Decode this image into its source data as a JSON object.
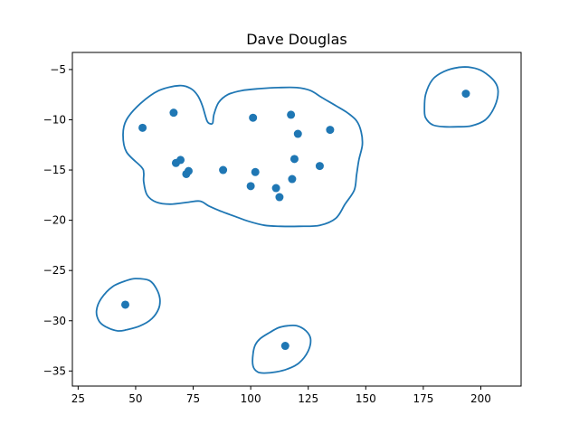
{
  "chart_data": {
    "type": "scatter",
    "title": "Dave Douglas",
    "xlabel": "",
    "ylabel": "",
    "xlim": [
      22.5,
      217.5
    ],
    "ylim": [
      -36.5,
      -3.3
    ],
    "xticks": [
      25,
      50,
      75,
      100,
      125,
      150,
      175,
      200
    ],
    "yticks": [
      -5,
      -10,
      -15,
      -20,
      -25,
      -30,
      -35
    ],
    "grid": false,
    "legend": "none",
    "color": "#1f77b4",
    "points": [
      {
        "x": 53.0,
        "y": -10.8
      },
      {
        "x": 66.5,
        "y": -9.3
      },
      {
        "x": 67.5,
        "y": -14.3
      },
      {
        "x": 69.5,
        "y": -14.0
      },
      {
        "x": 72.0,
        "y": -15.4
      },
      {
        "x": 73.0,
        "y": -15.1
      },
      {
        "x": 88.0,
        "y": -15.0
      },
      {
        "x": 100.0,
        "y": -16.6
      },
      {
        "x": 101.0,
        "y": -9.8
      },
      {
        "x": 102.0,
        "y": -15.2
      },
      {
        "x": 111.0,
        "y": -16.8
      },
      {
        "x": 112.5,
        "y": -17.7
      },
      {
        "x": 117.5,
        "y": -9.5
      },
      {
        "x": 118.0,
        "y": -15.9
      },
      {
        "x": 119.0,
        "y": -13.9
      },
      {
        "x": 120.5,
        "y": -11.4
      },
      {
        "x": 130.0,
        "y": -14.6
      },
      {
        "x": 134.5,
        "y": -11.0
      },
      {
        "x": 193.5,
        "y": -7.4
      },
      {
        "x": 45.5,
        "y": -28.4
      },
      {
        "x": 115.0,
        "y": -32.5
      }
    ],
    "contours": [
      [
        [
          83.5,
          -10.3
        ],
        [
          84,
          -9.5
        ],
        [
          86,
          -8.3
        ],
        [
          90,
          -7.5
        ],
        [
          96,
          -7.1
        ],
        [
          104,
          -6.9
        ],
        [
          112,
          -6.8
        ],
        [
          120,
          -6.8
        ],
        [
          126,
          -7.1
        ],
        [
          131,
          -7.8
        ],
        [
          137,
          -8.6
        ],
        [
          142,
          -9.3
        ],
        [
          146,
          -10.1
        ],
        [
          148,
          -11.2
        ],
        [
          148.5,
          -12.5
        ],
        [
          147,
          -14
        ],
        [
          146,
          -15.5
        ],
        [
          145,
          -17
        ],
        [
          141,
          -18.4
        ],
        [
          137,
          -19.8
        ],
        [
          130,
          -20.5
        ],
        [
          121,
          -20.6
        ],
        [
          113,
          -20.6
        ],
        [
          106,
          -20.5
        ],
        [
          99,
          -20.1
        ],
        [
          93,
          -19.6
        ],
        [
          87,
          -19.1
        ],
        [
          82,
          -18.6
        ],
        [
          78,
          -18.1
        ],
        [
          73,
          -18.2
        ],
        [
          65,
          -18.4
        ],
        [
          59,
          -18.2
        ],
        [
          55,
          -17.5
        ],
        [
          53.5,
          -16.2
        ],
        [
          53.5,
          -15.3
        ],
        [
          52.5,
          -14.7
        ],
        [
          46,
          -13.2
        ],
        [
          44.5,
          -11.5
        ],
        [
          46,
          -10
        ],
        [
          52,
          -8.4
        ],
        [
          60,
          -7.1
        ],
        [
          69,
          -6.6
        ],
        [
          74,
          -6.9
        ],
        [
          77,
          -7.6
        ],
        [
          79,
          -8.6
        ],
        [
          81,
          -10.1
        ],
        [
          82.5,
          -10.4
        ],
        [
          83.5,
          -10.3
        ]
      ],
      [
        [
          175.5,
          -9.0
        ],
        [
          176,
          -7.5
        ],
        [
          179,
          -6.0
        ],
        [
          184,
          -5.2
        ],
        [
          190,
          -4.8
        ],
        [
          196,
          -4.8
        ],
        [
          201,
          -5.2
        ],
        [
          206,
          -6.2
        ],
        [
          207.5,
          -7.2
        ],
        [
          206,
          -8.7
        ],
        [
          202,
          -10.0
        ],
        [
          196,
          -10.6
        ],
        [
          190,
          -10.7
        ],
        [
          184,
          -10.7
        ],
        [
          179,
          -10.5
        ],
        [
          176,
          -9.8
        ],
        [
          175.5,
          -9.0
        ]
      ],
      [
        [
          33,
          -29.0
        ],
        [
          35,
          -27.8
        ],
        [
          40,
          -26.6
        ],
        [
          46,
          -26.0
        ],
        [
          50,
          -25.8
        ],
        [
          56,
          -26.0
        ],
        [
          59,
          -26.8
        ],
        [
          60.5,
          -27.8
        ],
        [
          60,
          -28.8
        ],
        [
          57,
          -29.8
        ],
        [
          52,
          -30.5
        ],
        [
          46,
          -30.9
        ],
        [
          42,
          -31.0
        ],
        [
          37,
          -30.6
        ],
        [
          34,
          -30.0
        ],
        [
          33,
          -29.0
        ]
      ],
      [
        [
          101,
          -33.3
        ],
        [
          102,
          -32.4
        ],
        [
          104,
          -31.8
        ],
        [
          108,
          -31.2
        ],
        [
          112,
          -30.7
        ],
        [
          116,
          -30.5
        ],
        [
          120,
          -30.5
        ],
        [
          124,
          -31.0
        ],
        [
          126,
          -31.8
        ],
        [
          125,
          -33.0
        ],
        [
          121,
          -34.2
        ],
        [
          116,
          -34.8
        ],
        [
          111,
          -35.1
        ],
        [
          106,
          -35.2
        ],
        [
          103,
          -35.1
        ],
        [
          101,
          -34.5
        ],
        [
          101,
          -33.3
        ]
      ]
    ]
  }
}
